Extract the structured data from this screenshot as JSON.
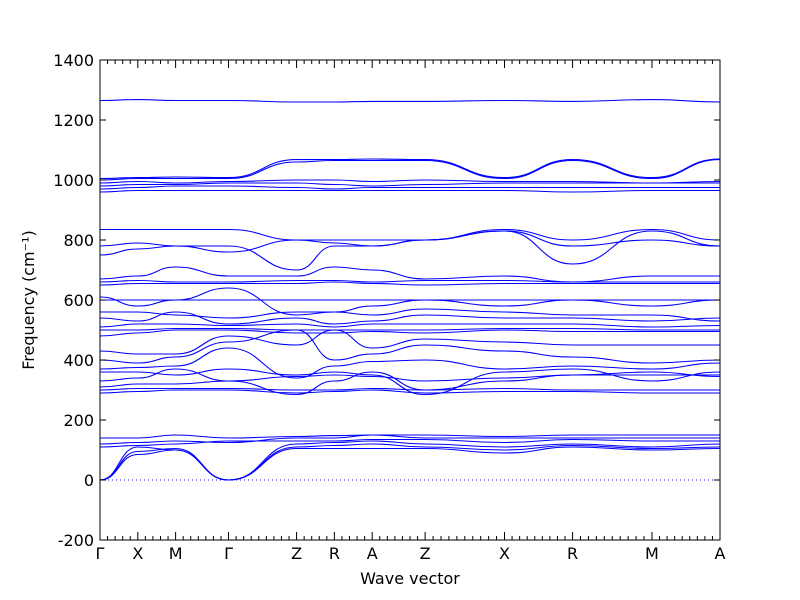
{
  "chart_data": {
    "type": "line",
    "xlabel": "Wave vector",
    "ylabel": "Frequency (cm⁻¹)",
    "ylim": [
      -200,
      1400
    ],
    "yticks": [
      -200,
      0,
      200,
      400,
      600,
      800,
      1000,
      1200,
      1400
    ],
    "kpoints": [
      {
        "label": "Γ",
        "x": 0.0
      },
      {
        "label": "X",
        "x": 0.5
      },
      {
        "label": "M",
        "x": 1.0
      },
      {
        "label": "Γ",
        "x": 1.7
      },
      {
        "label": "Z",
        "x": 2.6
      },
      {
        "label": "R",
        "x": 3.1
      },
      {
        "label": "A",
        "x": 3.6
      },
      {
        "label": "Z",
        "x": 4.3
      },
      {
        "label": "X",
        "x": 5.35
      },
      {
        "label": "R",
        "x": 6.25
      },
      {
        "label": "M",
        "x": 7.3
      },
      {
        "label": "A",
        "x": 8.2
      }
    ],
    "xlim": [
      0,
      8.2
    ],
    "zero_line": 0,
    "series": [
      {
        "values": [
          0,
          95,
          105,
          0,
          105,
          105,
          105,
          105,
          90,
          110,
          100,
          105
        ]
      },
      {
        "values": [
          0,
          85,
          100,
          0,
          110,
          115,
          120,
          110,
          100,
          115,
          105,
          110
        ]
      },
      {
        "values": [
          0,
          110,
          100,
          0,
          120,
          125,
          130,
          120,
          110,
          120,
          110,
          120
        ]
      },
      {
        "values": [
          110,
          115,
          120,
          130,
          130,
          130,
          135,
          135,
          125,
          135,
          130,
          130
        ]
      },
      {
        "values": [
          120,
          125,
          130,
          125,
          140,
          140,
          150,
          140,
          140,
          140,
          140,
          140
        ]
      },
      {
        "values": [
          140,
          140,
          150,
          140,
          145,
          148,
          150,
          150,
          145,
          150,
          150,
          150
        ]
      },
      {
        "values": [
          290,
          295,
          300,
          300,
          290,
          295,
          300,
          290,
          295,
          295,
          290,
          290
        ]
      },
      {
        "values": [
          300,
          305,
          305,
          305,
          300,
          300,
          305,
          300,
          305,
          300,
          300,
          300
        ]
      },
      {
        "values": [
          310,
          320,
          320,
          330,
          285,
          330,
          360,
          300,
          330,
          350,
          360,
          345
        ]
      },
      {
        "values": [
          330,
          340,
          370,
          330,
          345,
          350,
          345,
          330,
          340,
          350,
          350,
          350
        ]
      },
      {
        "values": [
          360,
          360,
          350,
          370,
          350,
          360,
          350,
          285,
          360,
          370,
          330,
          360
        ]
      },
      {
        "values": [
          370,
          375,
          380,
          440,
          340,
          380,
          395,
          400,
          370,
          380,
          370,
          390
        ]
      },
      {
        "values": [
          400,
          390,
          410,
          460,
          500,
          400,
          420,
          450,
          430,
          410,
          390,
          400
        ]
      },
      {
        "values": [
          430,
          420,
          420,
          480,
          450,
          500,
          440,
          470,
          460,
          450,
          450,
          450
        ]
      },
      {
        "values": [
          480,
          490,
          500,
          500,
          490,
          490,
          495,
          490,
          500,
          495,
          495,
          495
        ]
      },
      {
        "values": [
          500,
          500,
          505,
          505,
          500,
          500,
          500,
          500,
          505,
          505,
          500,
          500
        ]
      },
      {
        "values": [
          510,
          520,
          520,
          515,
          520,
          510,
          520,
          520,
          520,
          520,
          510,
          515
        ]
      },
      {
        "values": [
          540,
          530,
          560,
          520,
          540,
          520,
          530,
          550,
          540,
          540,
          530,
          540
        ]
      },
      {
        "values": [
          560,
          560,
          550,
          540,
          560,
          560,
          550,
          570,
          560,
          550,
          550,
          530
        ]
      },
      {
        "values": [
          600,
          600,
          600,
          600,
          600,
          600,
          600,
          600,
          600,
          600,
          600,
          600
        ]
      },
      {
        "values": [
          610,
          580,
          600,
          640,
          550,
          560,
          580,
          600,
          580,
          600,
          580,
          600
        ]
      },
      {
        "values": [
          650,
          655,
          655,
          655,
          655,
          660,
          655,
          650,
          655,
          655,
          655,
          655
        ]
      },
      {
        "values": [
          660,
          665,
          660,
          660,
          665,
          665,
          660,
          665,
          665,
          660,
          660,
          660
        ]
      },
      {
        "values": [
          670,
          680,
          710,
          680,
          680,
          710,
          700,
          670,
          680,
          660,
          680,
          680
        ]
      },
      {
        "values": [
          750,
          770,
          780,
          780,
          700,
          780,
          780,
          800,
          830,
          780,
          800,
          780
        ]
      },
      {
        "values": [
          780,
          790,
          780,
          760,
          800,
          790,
          780,
          800,
          830,
          720,
          830,
          780
        ]
      },
      {
        "values": [
          835,
          835,
          835,
          835,
          800,
          800,
          800,
          800,
          835,
          800,
          835,
          800
        ]
      },
      {
        "values": [
          960,
          965,
          965,
          965,
          965,
          965,
          965,
          965,
          965,
          960,
          965,
          965
        ]
      },
      {
        "values": [
          970,
          975,
          980,
          980,
          975,
          970,
          975,
          975,
          975,
          975,
          975,
          975
        ]
      },
      {
        "values": [
          980,
          985,
          985,
          990,
          990,
          985,
          980,
          985,
          990,
          990,
          990,
          990
        ]
      },
      {
        "values": [
          990,
          995,
          990,
          995,
          1000,
          1000,
          995,
          1000,
          995,
          995,
          990,
          995
        ]
      },
      {
        "values": [
          1000,
          1005,
          1005,
          1005,
          1060,
          1065,
          1065,
          1065,
          1005,
          1065,
          1005,
          1068
        ]
      },
      {
        "values": [
          1005,
          1008,
          1010,
          1008,
          1068,
          1068,
          1070,
          1068,
          1008,
          1068,
          1008,
          1070
        ]
      },
      {
        "values": [
          1265,
          1268,
          1265,
          1265,
          1260,
          1260,
          1262,
          1262,
          1265,
          1262,
          1268,
          1260
        ]
      }
    ]
  }
}
